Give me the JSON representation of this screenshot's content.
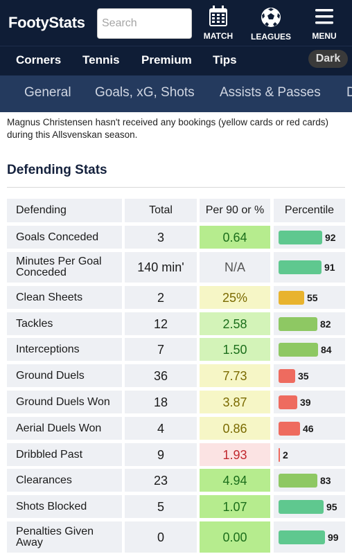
{
  "header": {
    "logo": "FootyStats",
    "search_placeholder": "Search",
    "nav_icons": [
      {
        "label": "MATCH",
        "icon": "calendar-icon"
      },
      {
        "label": "LEAGUES",
        "icon": "soccer-ball-icon"
      },
      {
        "label": "MENU",
        "icon": "hamburger-icon"
      }
    ]
  },
  "subnav": {
    "items": [
      "Corners",
      "Tennis",
      "Premium",
      "Tips"
    ],
    "dark_toggle": "Dark"
  },
  "tabs": [
    "General",
    "Goals, xG, Shots",
    "Assists & Passes",
    "D"
  ],
  "notice": "Magnus Christensen hasn't received any bookings (yellow cards or red cards) during this Allsvenskan season.",
  "section_title": "Defending Stats",
  "table": {
    "headers": [
      "Defending",
      "Total",
      "Per 90 or %",
      "Percentile"
    ],
    "rows": [
      {
        "name": "Goals Conceded",
        "total": "3",
        "per90": "0.64",
        "percentile": 92,
        "per90_bg": "#b6ec8e",
        "per90_color": "#1b6e1b",
        "bar_color": "#5fc88f"
      },
      {
        "name": "Minutes Per Goal Conceded",
        "total": "140 min'",
        "per90": "N/A",
        "percentile": 91,
        "per90_bg": "#eef0f4",
        "per90_color": "#555555",
        "bar_color": "#5fc88f"
      },
      {
        "name": "Clean Sheets",
        "total": "2",
        "per90": "25%",
        "percentile": 55,
        "per90_bg": "#f6f6c6",
        "per90_color": "#7a6a00",
        "bar_color": "#e8b32e"
      },
      {
        "name": "Tackles",
        "total": "12",
        "per90": "2.58",
        "percentile": 82,
        "per90_bg": "#d3f3b8",
        "per90_color": "#1b6e1b",
        "bar_color": "#8ec863"
      },
      {
        "name": "Interceptions",
        "total": "7",
        "per90": "1.50",
        "percentile": 84,
        "per90_bg": "#d3f3b8",
        "per90_color": "#1b6e1b",
        "bar_color": "#8ec863"
      },
      {
        "name": "Ground Duels",
        "total": "36",
        "per90": "7.73",
        "percentile": 35,
        "per90_bg": "#f6f6c6",
        "per90_color": "#7a6a00",
        "bar_color": "#ee6b5f"
      },
      {
        "name": "Ground Duels Won",
        "total": "18",
        "per90": "3.87",
        "percentile": 39,
        "per90_bg": "#f6f6c6",
        "per90_color": "#7a6a00",
        "bar_color": "#ee6b5f"
      },
      {
        "name": "Aerial Duels Won",
        "total": "4",
        "per90": "0.86",
        "percentile": 46,
        "per90_bg": "#f6f6c6",
        "per90_color": "#7a6a00",
        "bar_color": "#ee6b5f"
      },
      {
        "name": "Dribbled Past",
        "total": "9",
        "per90": "1.93",
        "percentile": 2,
        "per90_bg": "#fbe3e3",
        "per90_color": "#c0272d",
        "bar_color": "#ee6b5f"
      },
      {
        "name": "Clearances",
        "total": "23",
        "per90": "4.94",
        "percentile": 83,
        "per90_bg": "#b6ec8e",
        "per90_color": "#1b6e1b",
        "bar_color": "#8ec863"
      },
      {
        "name": "Shots Blocked",
        "total": "5",
        "per90": "1.07",
        "percentile": 95,
        "per90_bg": "#b6ec8e",
        "per90_color": "#1b6e1b",
        "bar_color": "#5fc88f"
      },
      {
        "name": "Penalties Given Away",
        "total": "0",
        "per90": "0.00",
        "percentile": 99,
        "per90_bg": "#b6ec8e",
        "per90_color": "#1b6e1b",
        "bar_color": "#5fc88f"
      }
    ]
  }
}
